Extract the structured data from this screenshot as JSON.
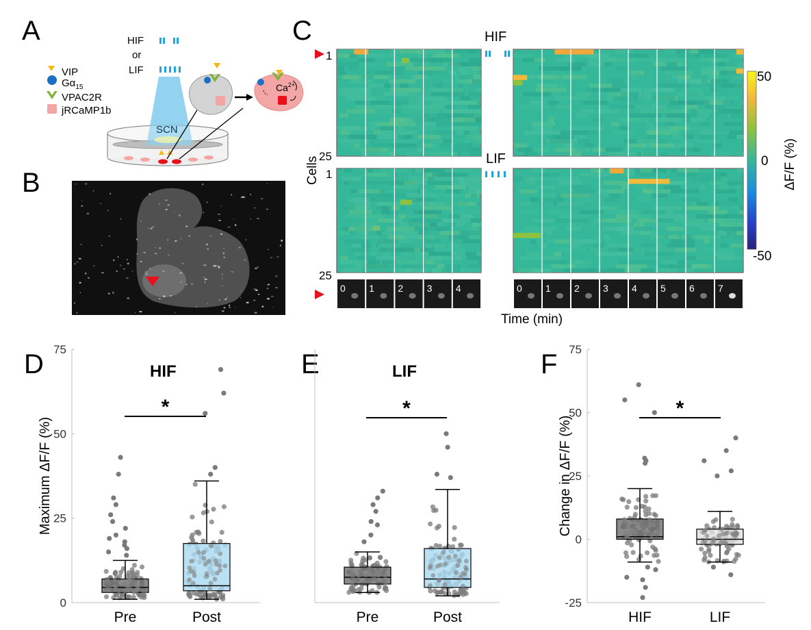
{
  "panels": {
    "A": {
      "label": "A",
      "stim": {
        "hif": "HIF",
        "or": "or",
        "lif": "LIF"
      },
      "legend": [
        "VIP",
        "Gα",
        "VPAC2R",
        "jRCaMP1b"
      ],
      "legend_sub": "15",
      "scn": "SCN",
      "ca": "Ca",
      "ca_sup": "2+",
      "colors": {
        "vip": "#f5b80f",
        "galpha": "#1c6fc3",
        "vpac2r": "#7fb23a",
        "jrcamp": "#f4a6a6",
        "light": "#8fd1f0",
        "red": "#e8101b"
      }
    },
    "B": {
      "label": "B"
    },
    "C": {
      "label": "C",
      "hif": "HIF",
      "lif": "LIF",
      "cells_label": "Cells",
      "row_ticks": {
        "top": "1",
        "bottom": "25"
      },
      "time_label": "Time (min)",
      "colorbar": {
        "label": "ΔF/F (%)",
        "ticks": [
          "50",
          "0",
          "-50"
        ]
      },
      "pre_frames": [
        "0",
        "1",
        "2",
        "3",
        "4"
      ],
      "post_frames": [
        "0",
        "1",
        "2",
        "3",
        "4",
        "5",
        "6",
        "7"
      ]
    },
    "D": {
      "label": "D",
      "title": "HIF",
      "sig": "*"
    },
    "E": {
      "label": "E",
      "title": "LIF",
      "sig": "*"
    },
    "F": {
      "label": "F",
      "sig": "*"
    }
  },
  "chart_data": [
    {
      "panel": "D",
      "type": "box",
      "title": "HIF",
      "ylabel": "Maximum ΔF/F (%)",
      "ylim": [
        0,
        75
      ],
      "yticks": [
        "0",
        "25",
        "50",
        "75"
      ],
      "categories": [
        "Pre",
        "Post"
      ],
      "boxes": [
        {
          "whisker_low": 1,
          "q1": 3,
          "median": 4.5,
          "q3": 7,
          "whisker_high": 12.5,
          "color": "#6e6e6e",
          "outliers": [
            43,
            38,
            31,
            29,
            26,
            24,
            22,
            20,
            19,
            18,
            17,
            16,
            15,
            14
          ]
        },
        {
          "whisker_low": 1,
          "q1": 3.5,
          "median": 5,
          "q3": 17.5,
          "whisker_high": 36,
          "color": "#a8d8f0",
          "outliers": [
            69,
            62,
            56,
            40,
            38
          ]
        }
      ]
    },
    {
      "panel": "E",
      "type": "box",
      "title": "LIF",
      "ylim": [
        0,
        75
      ],
      "categories": [
        "Pre",
        "Post"
      ],
      "boxes": [
        {
          "whisker_low": 3,
          "q1": 5.5,
          "median": 7.5,
          "q3": 10.5,
          "whisker_high": 15,
          "color": "#6e6e6e",
          "outliers": [
            33,
            31,
            29,
            27,
            24,
            23,
            20,
            18
          ]
        },
        {
          "whisker_low": 2,
          "q1": 4.5,
          "median": 7,
          "q3": 16,
          "whisker_high": 33.5,
          "color": "#a8d8f0",
          "outliers": [
            50,
            46,
            38,
            37
          ]
        }
      ]
    },
    {
      "panel": "F",
      "type": "box",
      "ylabel": "Change in ΔF/F (%)",
      "ylim": [
        -25,
        75
      ],
      "yticks": [
        "-25",
        "0",
        "25",
        "50",
        "75"
      ],
      "categories": [
        "HIF",
        "LIF"
      ],
      "boxes": [
        {
          "whisker_low": -9,
          "q1": 0,
          "median": 1,
          "q3": 8,
          "whisker_high": 20,
          "color": "#6e6e6e",
          "outliers": [
            61,
            55,
            50,
            32,
            31,
            30,
            -11,
            -12,
            -15,
            -16,
            -19,
            -23
          ]
        },
        {
          "whisker_low": -9,
          "q1": -2,
          "median": 0,
          "q3": 4,
          "whisker_high": 11,
          "color": "#e2e2e2",
          "outliers": [
            40,
            35,
            31,
            27,
            25,
            -11,
            -14
          ]
        }
      ]
    }
  ]
}
